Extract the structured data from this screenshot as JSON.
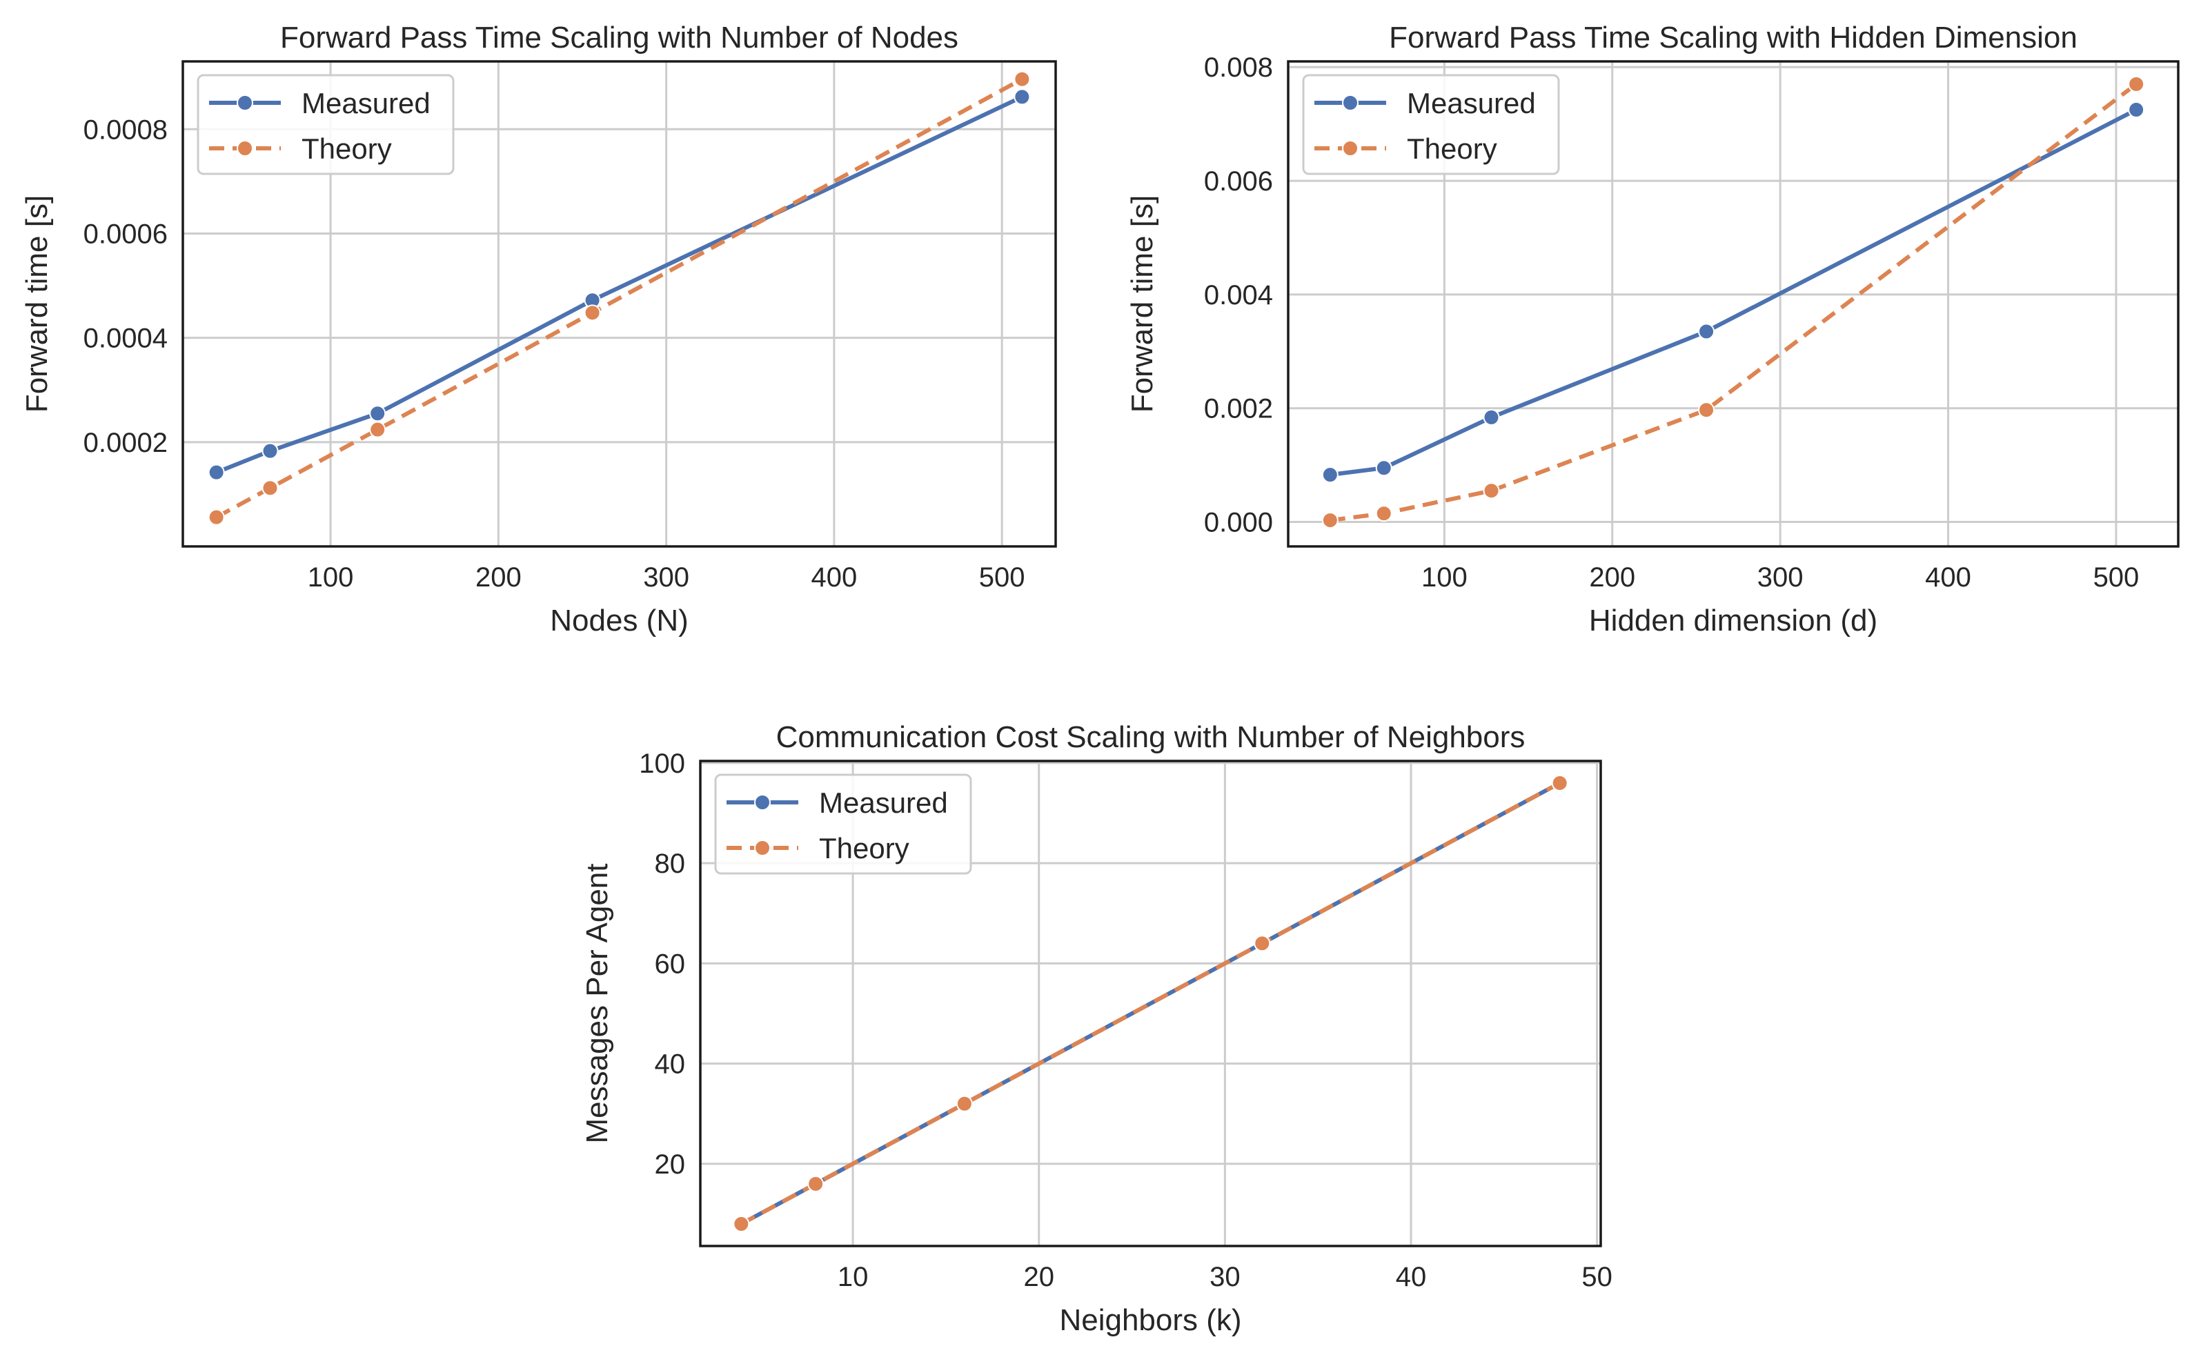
{
  "chart_data": [
    {
      "type": "line",
      "title": "Forward Pass Time Scaling with Number of Nodes",
      "xlabel": "Nodes (N)",
      "ylabel": "Forward time [s]",
      "xlim": [
        12,
        532
      ],
      "ylim": [
        0.0,
        0.00093
      ],
      "xticks": [
        100,
        200,
        300,
        400,
        500
      ],
      "yticks": [
        0.0002,
        0.0004,
        0.0006,
        0.0008
      ],
      "ytick_labels": [
        "0.0002",
        "0.0004",
        "0.0006",
        "0.0008"
      ],
      "xtick_labels": [
        "100",
        "200",
        "300",
        "400",
        "500"
      ],
      "grid": true,
      "legend": "top-left",
      "x": [
        32,
        64,
        128,
        256,
        512
      ],
      "series": [
        {
          "name": "Measured",
          "values": [
            0.000142,
            0.000183,
            0.000255,
            0.000472,
            0.000862
          ],
          "color": "#4c72b0",
          "dash": "solid"
        },
        {
          "name": "Theory",
          "values": [
            5.6e-05,
            0.000112,
            0.000224,
            0.000448,
            0.000896
          ],
          "color": "#dd8452",
          "dash": "dashed"
        }
      ]
    },
    {
      "type": "line",
      "title": "Forward Pass Time Scaling with Hidden Dimension",
      "xlabel": "Hidden dimension (d)",
      "ylabel": "Forward time [s]",
      "xlim": [
        7,
        537
      ],
      "ylim": [
        -0.00043,
        0.0081
      ],
      "xticks": [
        100,
        200,
        300,
        400,
        500
      ],
      "yticks": [
        0.0,
        0.002,
        0.004,
        0.006,
        0.008
      ],
      "ytick_labels": [
        "0.000",
        "0.002",
        "0.004",
        "0.006",
        "0.008"
      ],
      "xtick_labels": [
        "100",
        "200",
        "300",
        "400",
        "500"
      ],
      "grid": true,
      "legend": "top-left",
      "x": [
        32,
        64,
        128,
        256,
        512
      ],
      "series": [
        {
          "name": "Measured",
          "values": [
            0.00083,
            0.00095,
            0.00184,
            0.00335,
            0.00725
          ],
          "color": "#4c72b0",
          "dash": "solid"
        },
        {
          "name": "Theory",
          "values": [
            3e-05,
            0.00015,
            0.00055,
            0.00197,
            0.0077
          ],
          "color": "#dd8452",
          "dash": "dashed"
        }
      ]
    },
    {
      "type": "line",
      "title": "Communication Cost Scaling with Number of Neighbors",
      "xlabel": "Neighbors (k)",
      "ylabel": "Messages Per Agent",
      "xlim": [
        1.8,
        50.2
      ],
      "ylim": [
        3.6,
        100.4
      ],
      "xticks": [
        10,
        20,
        30,
        40,
        50
      ],
      "yticks": [
        20,
        40,
        60,
        80,
        100
      ],
      "ytick_labels": [
        "20",
        "40",
        "60",
        "80",
        "100"
      ],
      "xtick_labels": [
        "10",
        "20",
        "30",
        "40",
        "50"
      ],
      "grid": true,
      "legend": "top-left",
      "x": [
        4,
        8,
        16,
        32,
        48
      ],
      "series": [
        {
          "name": "Measured",
          "values": [
            8,
            16,
            32,
            64,
            96
          ],
          "color": "#4c72b0",
          "dash": "solid"
        },
        {
          "name": "Theory",
          "values": [
            8,
            16,
            32,
            64,
            96
          ],
          "color": "#dd8452",
          "dash": "dashed"
        }
      ]
    }
  ]
}
